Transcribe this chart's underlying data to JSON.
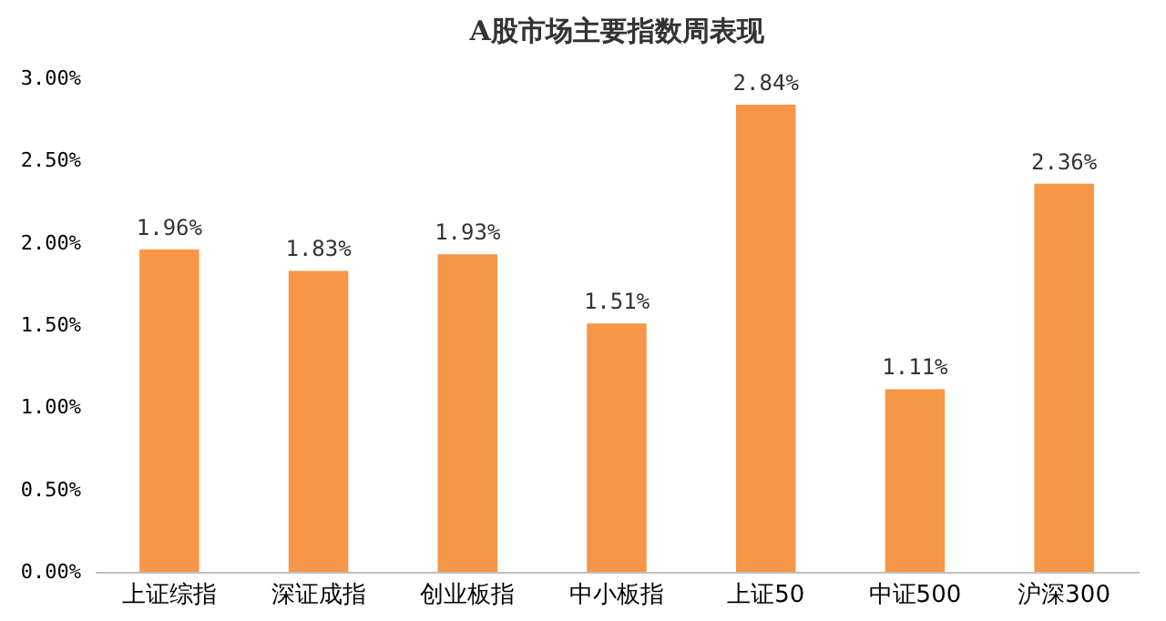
{
  "chart_data": {
    "type": "bar",
    "title": "A股市场主要指数周表现",
    "categories": [
      "上证综指",
      "深证成指",
      "创业板指",
      "中小板指",
      "上证50",
      "中证500",
      "沪深300"
    ],
    "values": [
      1.96,
      1.83,
      1.93,
      1.51,
      2.84,
      1.11,
      2.36
    ],
    "value_labels": [
      "1.96%",
      "1.83%",
      "1.93%",
      "1.51%",
      "2.84%",
      "1.11%",
      "2.36%"
    ],
    "color": "#f79646",
    "ylim": [
      0,
      3
    ],
    "yticks": [
      {
        "value": 0,
        "label": "0.00%"
      },
      {
        "value": 0.5,
        "label": "0.50%"
      },
      {
        "value": 1,
        "label": "1.00%"
      },
      {
        "value": 1.5,
        "label": "1.50%"
      },
      {
        "value": 2,
        "label": "2.00%"
      },
      {
        "value": 2.5,
        "label": "2.50%"
      },
      {
        "value": 3,
        "label": "3.00%"
      }
    ],
    "grid": false
  }
}
